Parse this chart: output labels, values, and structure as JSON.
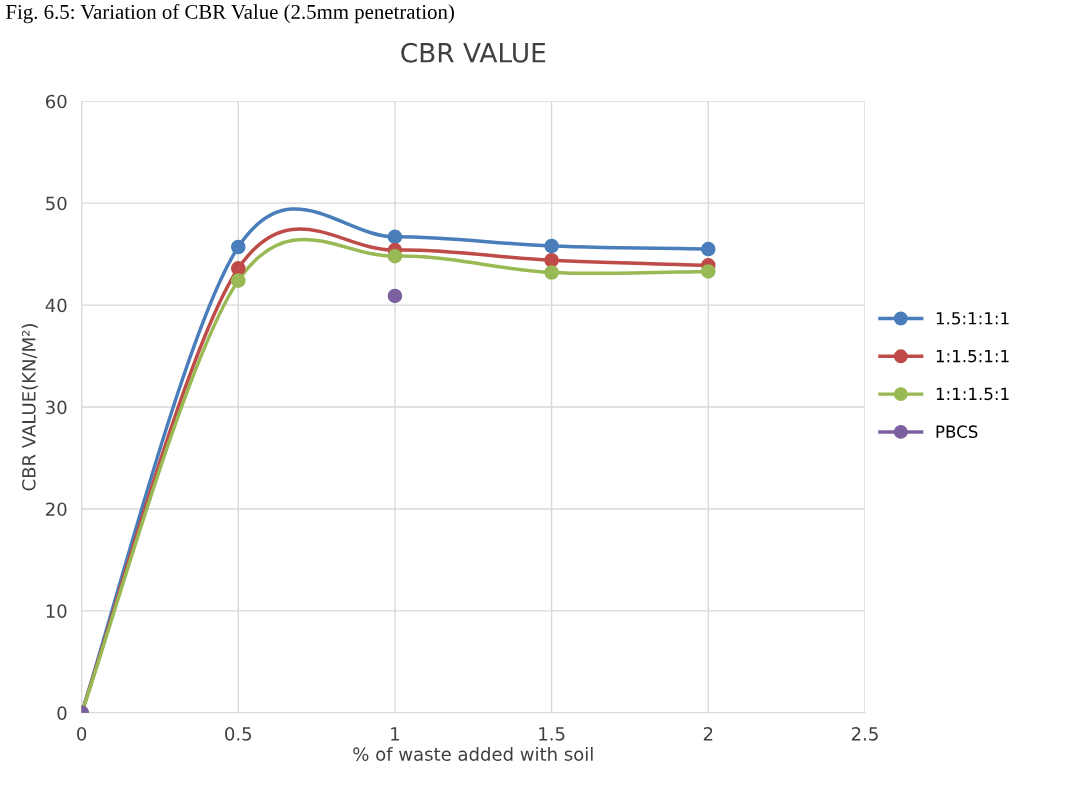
{
  "chart_data": {
    "type": "line",
    "title": "CBR VALUE",
    "xlabel": "% of waste added with soil",
    "ylabel": "CBR VALUE(KN/M²)",
    "annotations": [
      "Fig. 6.5: Variation of CBR Value (2.5mm penetration)"
    ],
    "x": [
      0,
      0.5,
      1,
      1.5,
      2
    ],
    "series": [
      {
        "name": "1.5:1:1:1",
        "color": "#4a7ebb",
        "values": [
          0,
          45.7,
          46.7,
          45.8,
          45.5
        ]
      },
      {
        "name": "1:1.5:1:1",
        "color": "#be4b48",
        "values": [
          0,
          43.6,
          45.4,
          44.4,
          43.9
        ]
      },
      {
        "name": "1:1:1.5:1",
        "color": "#98b954",
        "values": [
          0,
          42.4,
          44.8,
          43.2,
          43.3
        ]
      },
      {
        "name": "PBCS",
        "type": "scatter",
        "color": "#7d60a0",
        "values": [
          0,
          null,
          40.9,
          null,
          null
        ]
      }
    ],
    "xlim": [
      0,
      2.5
    ],
    "xticks": [
      0,
      0.5,
      1,
      1.5,
      2,
      2.5
    ],
    "ylim": [
      0,
      60
    ],
    "yticks": [
      0,
      10,
      20,
      30,
      40,
      50,
      60
    ],
    "grid": true,
    "legend": "right",
    "marker": "circle",
    "line_style": "solid"
  }
}
